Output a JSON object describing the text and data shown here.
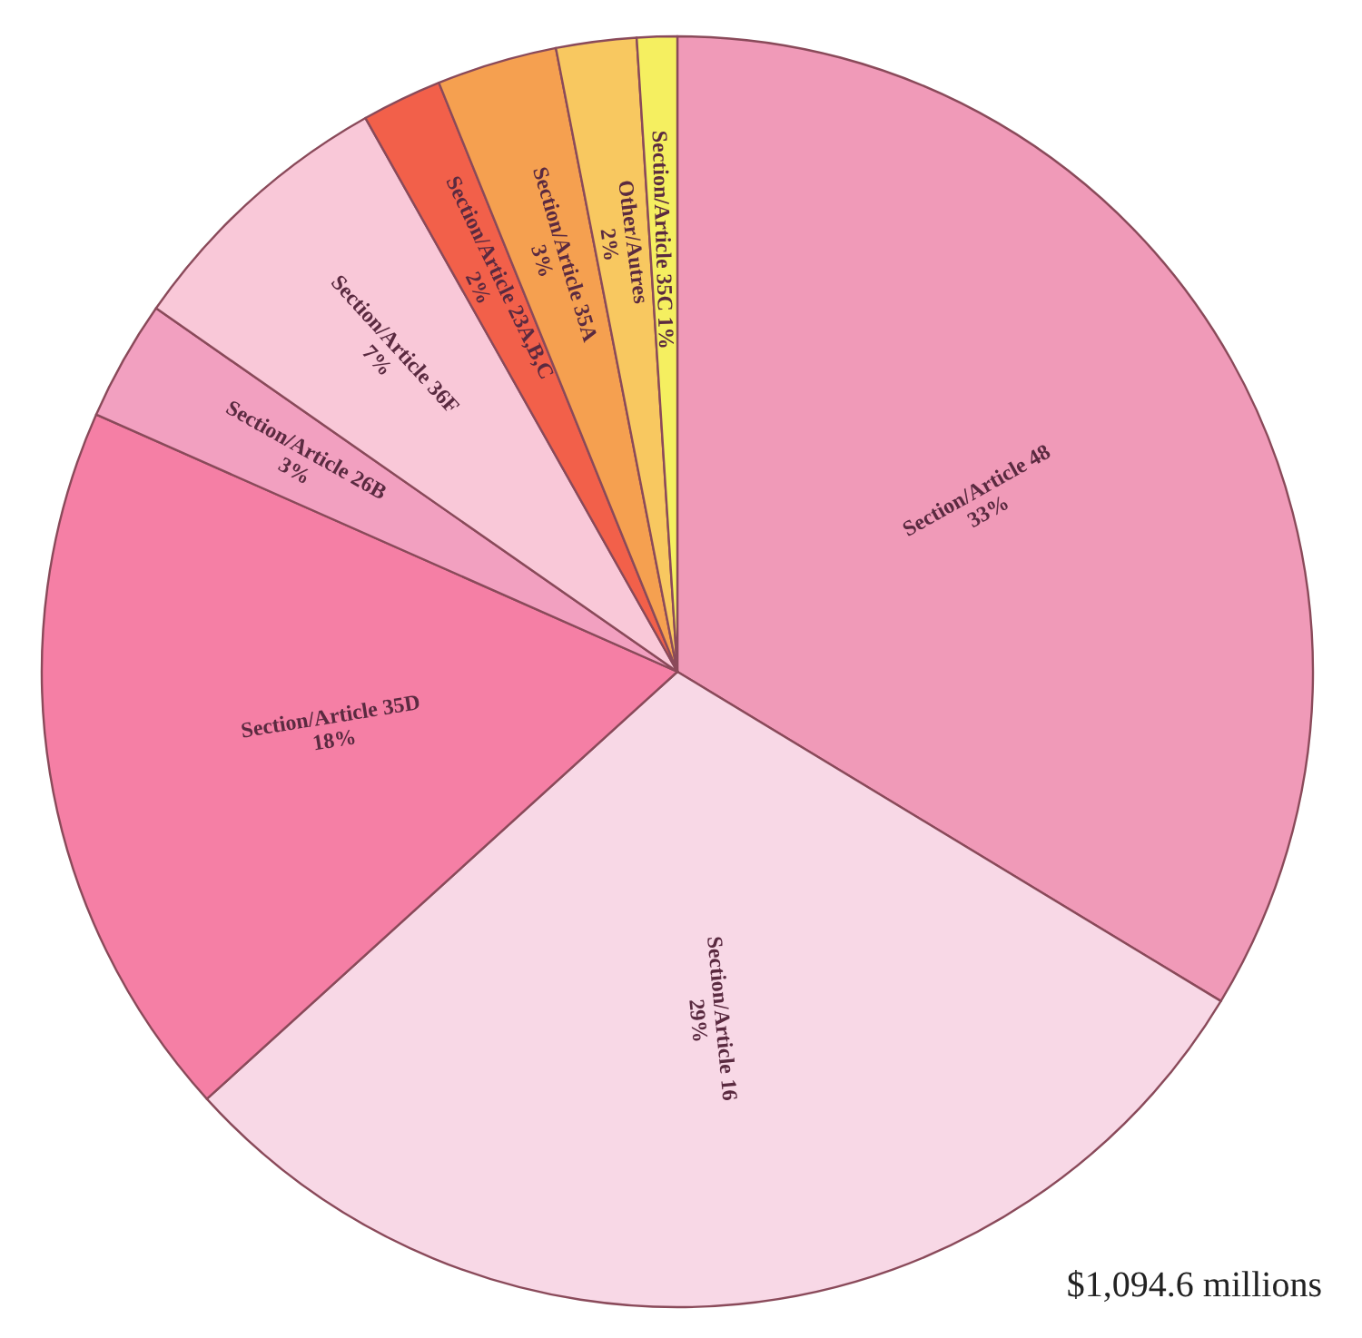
{
  "chart_data": {
    "type": "pie",
    "categories": [
      "Section/Article 48",
      "Section/Article 16",
      "Section/Article 35D",
      "Section/Article 26B",
      "Section/Article 36F",
      "Section/Article 23A,B,C",
      "Section/Article 35A",
      "Other/Autres",
      "Section/Article 35C"
    ],
    "values": [
      33,
      29,
      18,
      3,
      7,
      2,
      3,
      2,
      1
    ],
    "value_labels": [
      "33%",
      "29%",
      "18%",
      "3%",
      "7%",
      "2%",
      "3%",
      "2%",
      "1%"
    ],
    "colors": [
      "#f09ab8",
      "#f8d8e6",
      "#f57fa5",
      "#f2a0c0",
      "#f9c8d8",
      "#f2604a",
      "#f5a050",
      "#f8c860",
      "#f5ef60"
    ],
    "annotations": [
      "$1,094.6 millions"
    ]
  }
}
